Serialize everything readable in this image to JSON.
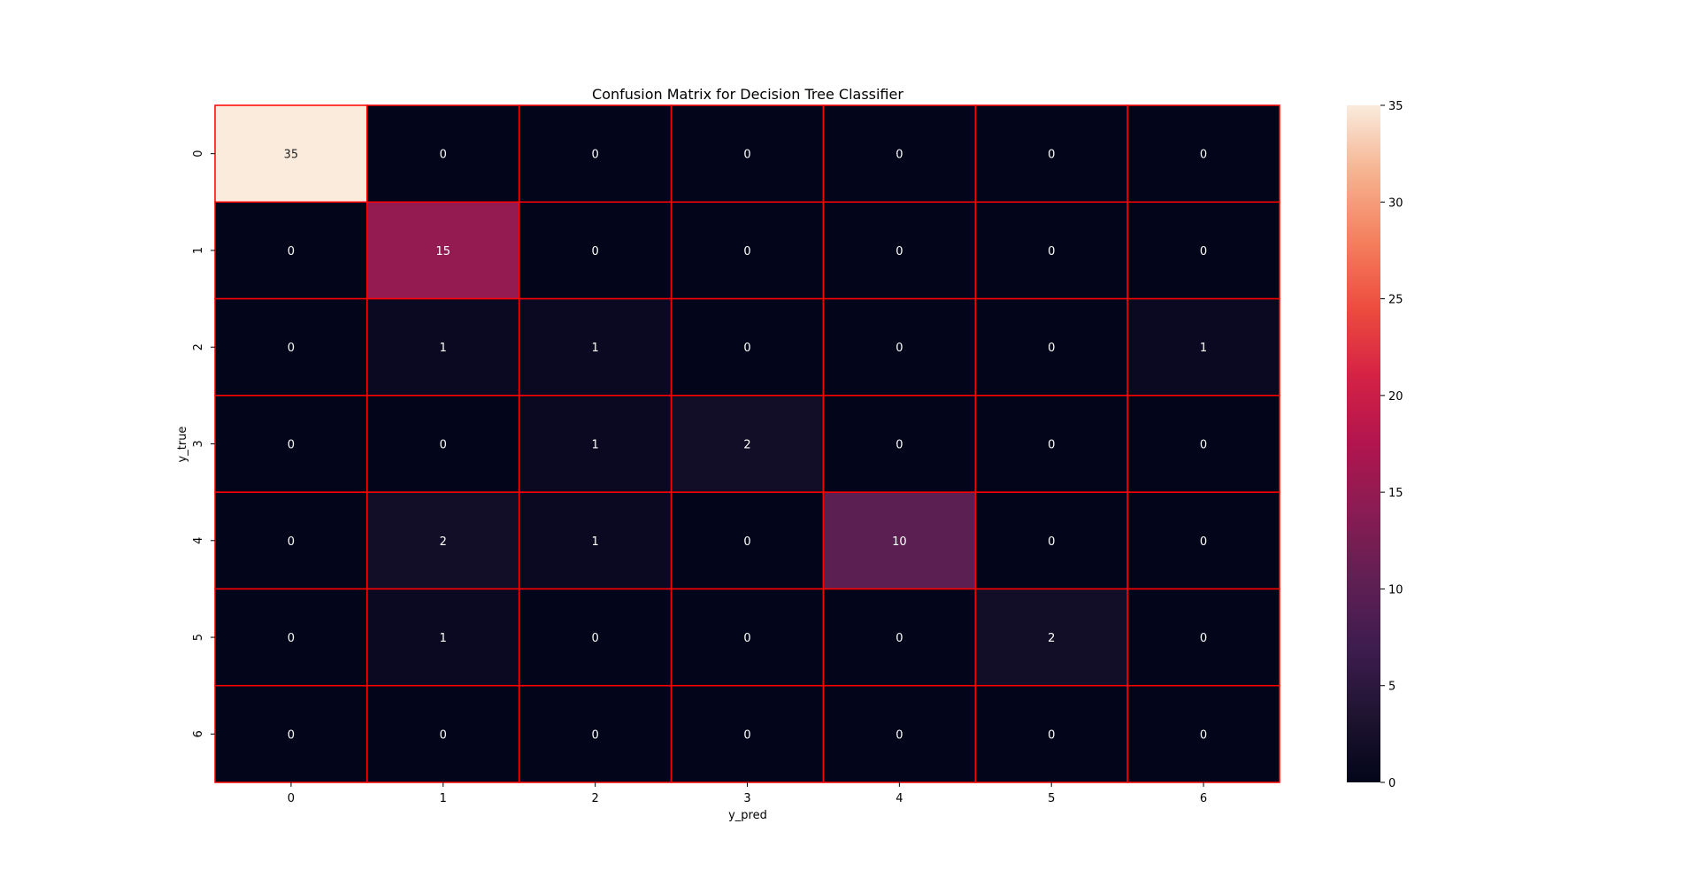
{
  "chart_data": {
    "type": "heatmap",
    "title": "Confusion Matrix for Decision Tree Classifier",
    "xlabel": "y_pred",
    "ylabel": "y_true",
    "x_categories": [
      "0",
      "1",
      "2",
      "3",
      "4",
      "5",
      "6"
    ],
    "y_categories": [
      "0",
      "1",
      "2",
      "3",
      "4",
      "5",
      "6"
    ],
    "values": [
      [
        35,
        0,
        0,
        0,
        0,
        0,
        0
      ],
      [
        0,
        15,
        0,
        0,
        0,
        0,
        0
      ],
      [
        0,
        1,
        1,
        0,
        0,
        0,
        1
      ],
      [
        0,
        0,
        1,
        2,
        0,
        0,
        0
      ],
      [
        0,
        2,
        1,
        0,
        10,
        0,
        0
      ],
      [
        0,
        1,
        0,
        0,
        0,
        2,
        0
      ],
      [
        0,
        0,
        0,
        0,
        0,
        0,
        0
      ]
    ],
    "colorbar": {
      "range": [
        0,
        35
      ],
      "ticks": [
        "0",
        "5",
        "10",
        "15",
        "20",
        "25",
        "30",
        "35"
      ],
      "colormap": "rocket"
    },
    "cell_border_color": "#ff0000",
    "annotations_shown": true,
    "grid": false
  }
}
